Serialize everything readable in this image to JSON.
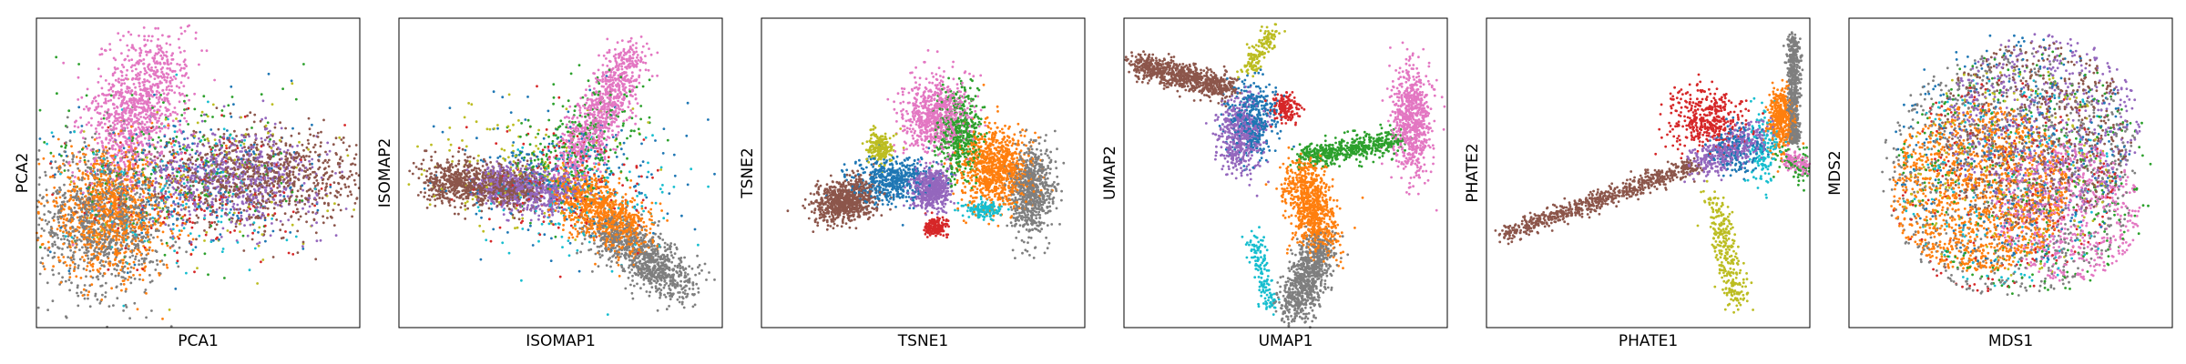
{
  "figure": {
    "background": "#ffffff",
    "panel_count": 6
  },
  "colors": {
    "blue": "#1f77b4",
    "orange": "#ff7f0e",
    "green": "#2ca02c",
    "red": "#d62728",
    "purple": "#9467bd",
    "brown": "#8c564b",
    "pink": "#e377c2",
    "gray": "#7f7f7f",
    "olive": "#bcbd22",
    "cyan": "#17becf"
  },
  "chart_data": [
    {
      "type": "scatter",
      "title": "",
      "xlabel": "PCA1",
      "ylabel": "PCA2",
      "xlim": [
        -1,
        1
      ],
      "ylim": [
        -1,
        1
      ],
      "xticks": [],
      "yticks": [],
      "grid": false,
      "legend": "none",
      "clusters": [
        {
          "color": "pink",
          "shape": "blob",
          "cx": -0.38,
          "cy": 0.42,
          "sx": 0.13,
          "sy": 0.25,
          "rot": -0.35,
          "n": 1000
        },
        {
          "color": "gray",
          "shape": "blob",
          "cx": -0.58,
          "cy": -0.3,
          "sx": 0.2,
          "sy": 0.24,
          "rot": 0,
          "n": 1000
        },
        {
          "color": "orange",
          "shape": "blob",
          "cx": -0.55,
          "cy": -0.26,
          "sx": 0.2,
          "sy": 0.2,
          "rot": 0,
          "n": 1000
        },
        {
          "color": "brown",
          "shape": "blob",
          "cx": 0.4,
          "cy": -0.03,
          "sx": 0.32,
          "sy": 0.15,
          "rot": 0,
          "n": 900
        },
        {
          "color": "purple",
          "shape": "blob",
          "cx": 0.2,
          "cy": -0.03,
          "sx": 0.28,
          "sy": 0.15,
          "rot": 0,
          "n": 700
        },
        {
          "color": "blue",
          "shape": "blob",
          "cx": -0.1,
          "cy": -0.05,
          "sx": 0.4,
          "sy": 0.25,
          "rot": 0,
          "n": 200
        },
        {
          "color": "green",
          "shape": "blob",
          "cx": -0.15,
          "cy": 0.05,
          "sx": 0.4,
          "sy": 0.3,
          "rot": 0,
          "n": 200
        },
        {
          "color": "red",
          "shape": "blob",
          "cx": -0.05,
          "cy": -0.15,
          "sx": 0.35,
          "sy": 0.25,
          "rot": 0,
          "n": 150
        },
        {
          "color": "olive",
          "shape": "blob",
          "cx": 0.1,
          "cy": 0.0,
          "sx": 0.4,
          "sy": 0.25,
          "rot": 0,
          "n": 120
        },
        {
          "color": "cyan",
          "shape": "blob",
          "cx": -0.2,
          "cy": -0.1,
          "sx": 0.35,
          "sy": 0.25,
          "rot": 0,
          "n": 150
        }
      ]
    },
    {
      "type": "scatter",
      "title": "",
      "xlabel": "ISOMAP1",
      "ylabel": "ISOMAP2",
      "xlim": [
        -1,
        1
      ],
      "ylim": [
        -1,
        1
      ],
      "xticks": [],
      "yticks": [],
      "grid": false,
      "legend": "none",
      "clusters": [
        {
          "color": "pink",
          "shape": "line",
          "x0": 0.08,
          "y0": 0.05,
          "x1": 0.45,
          "y1": 0.78,
          "spread": 0.07,
          "n": 900
        },
        {
          "color": "brown",
          "shape": "line",
          "x0": -0.8,
          "y0": -0.05,
          "x1": -0.2,
          "y1": -0.1,
          "spread": 0.07,
          "n": 900
        },
        {
          "color": "purple",
          "shape": "line",
          "x0": -0.45,
          "y0": -0.08,
          "x1": 0.05,
          "y1": -0.12,
          "spread": 0.07,
          "n": 700
        },
        {
          "color": "orange",
          "shape": "line",
          "x0": 0.05,
          "y0": -0.1,
          "x1": 0.45,
          "y1": -0.4,
          "spread": 0.09,
          "n": 900
        },
        {
          "color": "gray",
          "shape": "line",
          "x0": 0.25,
          "y0": -0.35,
          "x1": 0.75,
          "y1": -0.72,
          "spread": 0.08,
          "n": 900
        },
        {
          "color": "green",
          "shape": "line",
          "x0": -0.1,
          "y0": 0.0,
          "x1": 0.35,
          "y1": 0.45,
          "spread": 0.15,
          "n": 250
        },
        {
          "color": "blue",
          "shape": "blob",
          "cx": 0.0,
          "cy": 0.0,
          "sx": 0.35,
          "sy": 0.22,
          "rot": 0,
          "n": 250
        },
        {
          "color": "olive",
          "shape": "blob",
          "cx": -0.25,
          "cy": 0.05,
          "sx": 0.3,
          "sy": 0.2,
          "rot": 0,
          "n": 150
        },
        {
          "color": "red",
          "shape": "blob",
          "cx": 0.05,
          "cy": -0.05,
          "sx": 0.3,
          "sy": 0.2,
          "rot": 0,
          "n": 150
        },
        {
          "color": "cyan",
          "shape": "blob",
          "cx": 0.15,
          "cy": -0.15,
          "sx": 0.3,
          "sy": 0.2,
          "rot": 0,
          "n": 150
        }
      ]
    },
    {
      "type": "scatter",
      "title": "",
      "xlabel": "TSNE1",
      "ylabel": "TSNE2",
      "xlim": [
        -1,
        1
      ],
      "ylim": [
        -1,
        1
      ],
      "xticks": [],
      "yticks": [],
      "grid": false,
      "legend": "none",
      "clusters": [
        {
          "color": "brown",
          "shape": "blob",
          "cx": -0.48,
          "cy": -0.18,
          "sx": 0.1,
          "sy": 0.07,
          "rot": 0.25,
          "n": 700
        },
        {
          "color": "pink",
          "shape": "blob",
          "cx": 0.08,
          "cy": 0.38,
          "sx": 0.1,
          "sy": 0.12,
          "rot": 0,
          "n": 700
        },
        {
          "color": "orange",
          "shape": "blob",
          "cx": 0.45,
          "cy": 0.02,
          "sx": 0.11,
          "sy": 0.13,
          "rot": 0,
          "n": 900
        },
        {
          "color": "gray",
          "shape": "blob",
          "cx": 0.67,
          "cy": -0.12,
          "sx": 0.07,
          "sy": 0.14,
          "rot": 0,
          "n": 700
        },
        {
          "color": "purple",
          "shape": "blob",
          "cx": 0.05,
          "cy": -0.1,
          "sx": 0.06,
          "sy": 0.07,
          "rot": 0,
          "n": 500
        },
        {
          "color": "blue",
          "shape": "blob",
          "cx": -0.2,
          "cy": -0.05,
          "sx": 0.12,
          "sy": 0.07,
          "rot": 0,
          "n": 500
        },
        {
          "color": "green",
          "shape": "blob",
          "cx": 0.22,
          "cy": 0.25,
          "sx": 0.07,
          "sy": 0.14,
          "rot": 0,
          "n": 500
        },
        {
          "color": "olive",
          "shape": "blob",
          "cx": -0.27,
          "cy": 0.17,
          "sx": 0.04,
          "sy": 0.05,
          "rot": 0,
          "n": 200
        },
        {
          "color": "red",
          "shape": "blob",
          "cx": 0.08,
          "cy": -0.35,
          "sx": 0.04,
          "sy": 0.03,
          "rot": 0,
          "n": 150
        },
        {
          "color": "cyan",
          "shape": "blob",
          "cx": 0.38,
          "cy": -0.24,
          "sx": 0.06,
          "sy": 0.03,
          "rot": 0,
          "n": 150
        }
      ]
    },
    {
      "type": "scatter",
      "title": "",
      "xlabel": "UMAP1",
      "ylabel": "UMAP2",
      "xlim": [
        -1,
        1
      ],
      "ylim": [
        -1,
        1
      ],
      "xticks": [],
      "yticks": [],
      "grid": false,
      "legend": "none",
      "clusters": [
        {
          "color": "brown",
          "shape": "line",
          "x0": -0.92,
          "y0": 0.7,
          "x1": -0.35,
          "y1": 0.55,
          "spread": 0.04,
          "n": 800
        },
        {
          "color": "purple",
          "shape": "blob",
          "cx": -0.28,
          "cy": 0.25,
          "sx": 0.07,
          "sy": 0.12,
          "rot": 0,
          "n": 500
        },
        {
          "color": "blue",
          "shape": "blob",
          "cx": -0.2,
          "cy": 0.35,
          "sx": 0.08,
          "sy": 0.12,
          "rot": 0,
          "n": 400
        },
        {
          "color": "olive",
          "shape": "line",
          "x0": -0.25,
          "y0": 0.65,
          "x1": -0.07,
          "y1": 0.92,
          "spread": 0.03,
          "n": 150
        },
        {
          "color": "red",
          "shape": "blob",
          "cx": 0.0,
          "cy": 0.42,
          "sx": 0.04,
          "sy": 0.05,
          "rot": 0,
          "n": 150
        },
        {
          "color": "pink",
          "shape": "blob",
          "cx": 0.78,
          "cy": 0.35,
          "sx": 0.06,
          "sy": 0.18,
          "rot": 0,
          "n": 700
        },
        {
          "color": "green",
          "shape": "line",
          "x0": 0.1,
          "y0": 0.1,
          "x1": 0.7,
          "y1": 0.2,
          "spread": 0.04,
          "n": 500
        },
        {
          "color": "orange",
          "shape": "line",
          "x0": 0.1,
          "y0": 0.0,
          "x1": 0.22,
          "y1": -0.45,
          "spread": 0.07,
          "n": 800
        },
        {
          "color": "gray",
          "shape": "line",
          "x0": 0.22,
          "y0": -0.45,
          "x1": 0.05,
          "y1": -0.9,
          "spread": 0.06,
          "n": 800
        },
        {
          "color": "cyan",
          "shape": "line",
          "x0": -0.2,
          "y0": -0.4,
          "x1": -0.08,
          "y1": -0.92,
          "spread": 0.03,
          "n": 150
        }
      ]
    },
    {
      "type": "scatter",
      "title": "",
      "xlabel": "PHATE1",
      "ylabel": "PHATE2",
      "xlim": [
        -1,
        1
      ],
      "ylim": [
        -1,
        1
      ],
      "xticks": [],
      "yticks": [],
      "grid": false,
      "legend": "none",
      "clusters": [
        {
          "color": "gray",
          "shape": "line",
          "x0": 0.9,
          "y0": 0.88,
          "x1": 0.9,
          "y1": 0.2,
          "spread": 0.02,
          "n": 600
        },
        {
          "color": "orange",
          "shape": "blob",
          "cx": 0.82,
          "cy": 0.35,
          "sx": 0.04,
          "sy": 0.1,
          "rot": 0,
          "n": 400
        },
        {
          "color": "cyan",
          "shape": "blob",
          "cx": 0.72,
          "cy": 0.15,
          "sx": 0.05,
          "sy": 0.12,
          "rot": 0,
          "n": 150
        },
        {
          "color": "pink",
          "shape": "line",
          "x0": 0.85,
          "y0": 0.1,
          "x1": 1.95,
          "y1": -0.45,
          "spread": 0.03,
          "n": 700
        },
        {
          "color": "green",
          "shape": "line",
          "x0": 0.85,
          "y0": 0.1,
          "x1": 1.6,
          "y1": -0.25,
          "spread": 0.05,
          "n": 300
        },
        {
          "color": "brown",
          "shape": "line",
          "x0": -0.9,
          "y0": -0.4,
          "x1": 0.3,
          "y1": 0.05,
          "spread": 0.03,
          "n": 700
        },
        {
          "color": "purple",
          "shape": "line",
          "x0": 0.3,
          "y0": 0.05,
          "x1": 0.7,
          "y1": 0.25,
          "spread": 0.05,
          "n": 400
        },
        {
          "color": "blue",
          "shape": "blob",
          "cx": 0.55,
          "cy": 0.15,
          "sx": 0.08,
          "sy": 0.08,
          "rot": 0,
          "n": 200
        },
        {
          "color": "red",
          "shape": "blob",
          "cx": 0.35,
          "cy": 0.35,
          "sx": 0.12,
          "sy": 0.1,
          "rot": 0,
          "n": 400
        },
        {
          "color": "olive",
          "shape": "line",
          "x0": 0.4,
          "y0": -0.15,
          "x1": 0.55,
          "y1": -0.85,
          "spread": 0.04,
          "n": 300
        }
      ]
    },
    {
      "type": "scatter",
      "title": "",
      "xlabel": "MDS1",
      "ylabel": "MDS2",
      "xlim": [
        -1,
        1
      ],
      "ylim": [
        -1,
        1
      ],
      "xticks": [],
      "yticks": [],
      "grid": false,
      "legend": "none",
      "clusters": [
        {
          "color": "orange",
          "shape": "disc",
          "cx": -0.2,
          "cy": -0.1,
          "r": 0.55,
          "n": 1300
        },
        {
          "color": "gray",
          "shape": "disc",
          "cx": 0.0,
          "cy": 0.0,
          "r": 0.8,
          "n": 800
        },
        {
          "color": "brown",
          "shape": "disc",
          "cx": 0.15,
          "cy": 0.25,
          "r": 0.6,
          "n": 600
        },
        {
          "color": "purple",
          "shape": "disc",
          "cx": 0.2,
          "cy": 0.3,
          "r": 0.6,
          "n": 600
        },
        {
          "color": "pink",
          "shape": "disc",
          "cx": 0.35,
          "cy": -0.25,
          "r": 0.45,
          "n": 600
        },
        {
          "color": "blue",
          "shape": "disc",
          "cx": 0.0,
          "cy": 0.15,
          "r": 0.75,
          "n": 300
        },
        {
          "color": "green",
          "shape": "disc",
          "cx": 0.1,
          "cy": 0.0,
          "r": 0.8,
          "n": 300
        },
        {
          "color": "red",
          "shape": "disc",
          "cx": -0.05,
          "cy": -0.1,
          "r": 0.7,
          "n": 200
        },
        {
          "color": "olive",
          "shape": "disc",
          "cx": 0.0,
          "cy": 0.0,
          "r": 0.7,
          "n": 200
        },
        {
          "color": "cyan",
          "shape": "disc",
          "cx": 0.0,
          "cy": -0.05,
          "r": 0.7,
          "n": 200
        }
      ]
    }
  ]
}
